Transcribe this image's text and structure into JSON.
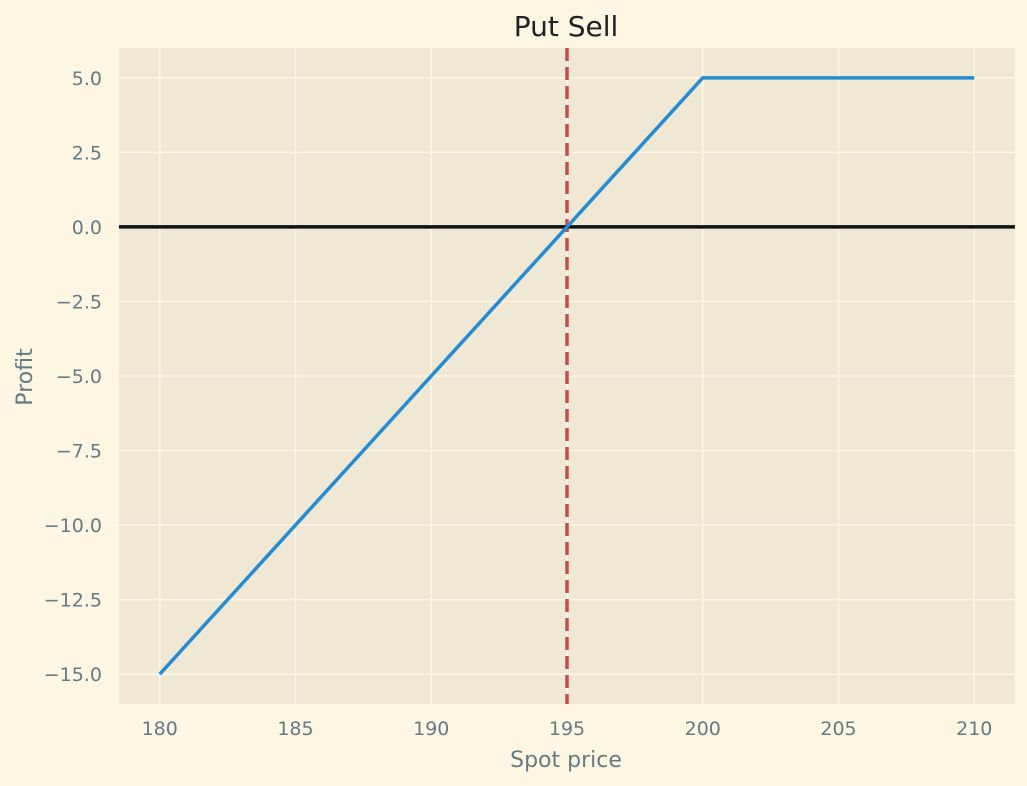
{
  "chart_data": {
    "type": "line",
    "title": "Put Sell",
    "xlabel": "Spot price",
    "ylabel": "Profit",
    "xlim": [
      178.5,
      211.5
    ],
    "ylim": [
      -16.0,
      6.0
    ],
    "x_ticks": [
      180,
      185,
      190,
      195,
      200,
      205,
      210
    ],
    "x_tick_labels": [
      "180",
      "185",
      "190",
      "195",
      "200",
      "205",
      "210"
    ],
    "y_ticks": [
      5.0,
      2.5,
      0.0,
      -2.5,
      -5.0,
      -7.5,
      -10.0,
      -12.5,
      -15.0
    ],
    "y_tick_labels": [
      "5.0",
      "2.5",
      "0.0",
      "−2.5",
      "−5.0",
      "−7.5",
      "−10.0",
      "−12.5",
      "−15.0"
    ],
    "grid": true,
    "series": [
      {
        "x": [
          180,
          200,
          210
        ],
        "y": [
          -15,
          5,
          5
        ]
      }
    ],
    "reference_lines": [
      {
        "orientation": "horizontal",
        "value": 0,
        "style": "solid"
      },
      {
        "orientation": "vertical",
        "value": 195,
        "style": "dashed"
      }
    ],
    "colors": {
      "figure_bg": "#fdf6e3",
      "plot_bg": "#eee8d5",
      "grid": "#fdf6e3",
      "series": "#268bd2",
      "zero_line": "#111111",
      "strike_line": "#c94c4c",
      "tick_text": "#657b83"
    }
  }
}
